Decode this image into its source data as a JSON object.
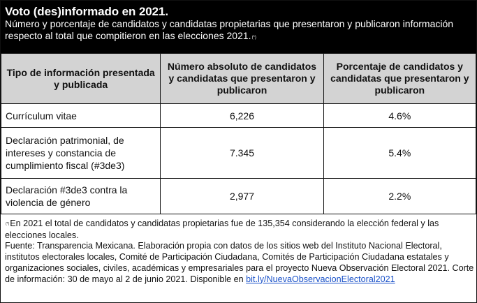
{
  "header": {
    "title": "Voto (des)informado en 2021.",
    "subtitle": "Número y porcentaje de candidatos y candidatas propietarias que presentaron y publicaron información respecto al total que compitieron en las elecciones 2021.",
    "subtitle_marker": "(*)"
  },
  "table": {
    "columns": [
      "Tipo de información presentada y publicada",
      "Número absoluto de candidatos y candidatas que presentaron y publicaron",
      "Porcentaje de candidatos y candidatas que presentaron y publicaron"
    ],
    "rows": [
      {
        "type": "Currículum vitae",
        "number": "6,226",
        "percent": "4.6%"
      },
      {
        "type": "Declaración patrimonial, de intereses y constancia de cumplimiento fiscal (#3de3)",
        "number": "7.345",
        "percent": "5.4%"
      },
      {
        "type": "Declaración #3de3 contra la violencia de género",
        "number": "2,977",
        "percent": "2.2%"
      }
    ]
  },
  "notes": {
    "marker": "(*)",
    "footnote": "En 2021 el total de candidatos y candidatas propietarias fue de 135,354 considerando la elección federal y las elecciones locales.",
    "source": "Fuente: Transparencia Mexicana. Elaboración propia con datos de los sitios web del Instituto Nacional Electoral, institutos electorales locales, Comité de Participación Ciudadana, Comités de Participación Ciudadana estatales y organizaciones sociales, civiles, académicas y empresariales para el proyecto Nueva Observación Electoral 2021. Corte de información: 30 de mayo al 2 de junio 2021. Disponible en",
    "link": "bit.ly/NuevaObservacionElectoral2021"
  }
}
